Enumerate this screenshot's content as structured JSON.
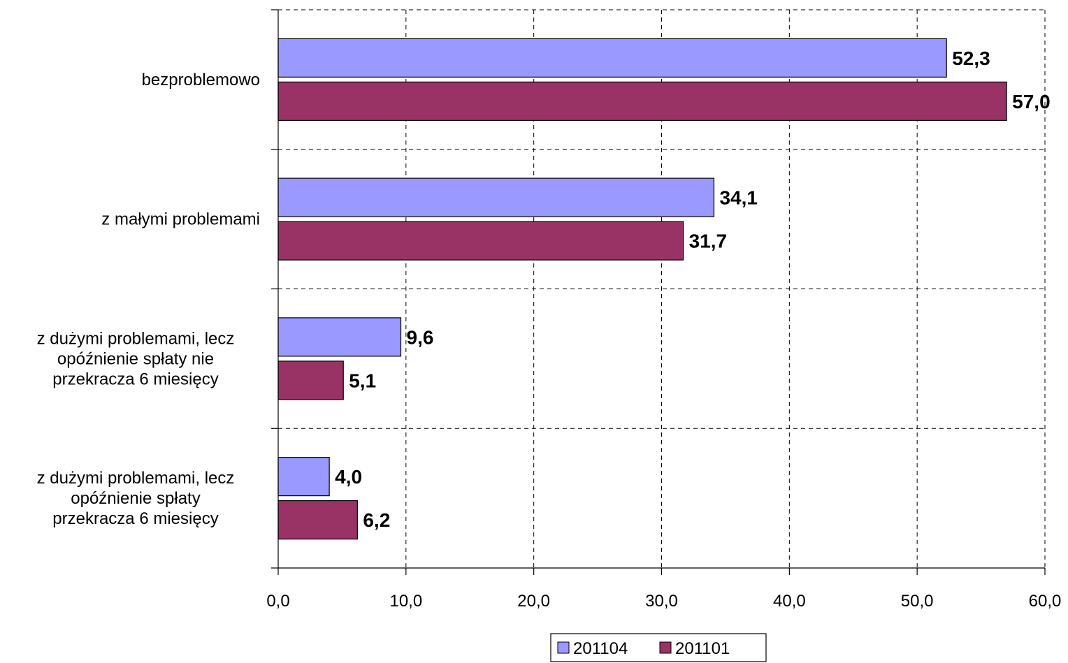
{
  "chart_data": {
    "type": "bar",
    "orientation": "horizontal",
    "categories": [
      [
        "bezproblemowo"
      ],
      [
        "z małymi problemami"
      ],
      [
        "z dużymi problemami, lecz",
        "opóźnienie spłaty nie",
        "przekracza 6 miesięcy"
      ],
      [
        "z dużymi problemami, lecz",
        "opóźnienie spłaty",
        "przekracza 6 miesięcy"
      ]
    ],
    "series": [
      {
        "name": "201104",
        "color": "#9999FF",
        "values": [
          52.3,
          34.1,
          9.6,
          4.0
        ],
        "labels": [
          "52,3",
          "34,1",
          "9,6",
          "4,0"
        ]
      },
      {
        "name": "201101",
        "color": "#993366",
        "values": [
          57.0,
          31.7,
          5.1,
          6.2
        ],
        "labels": [
          "57,0",
          "31,7",
          "5,1",
          "6,2"
        ]
      }
    ],
    "xlim": [
      0,
      60
    ],
    "xticks": [
      0,
      10,
      20,
      30,
      40,
      50,
      60
    ],
    "xtick_labels": [
      "0,0",
      "10,0",
      "20,0",
      "30,0",
      "40,0",
      "50,0",
      "60,0"
    ],
    "grid": true,
    "legend_position": "bottom"
  }
}
